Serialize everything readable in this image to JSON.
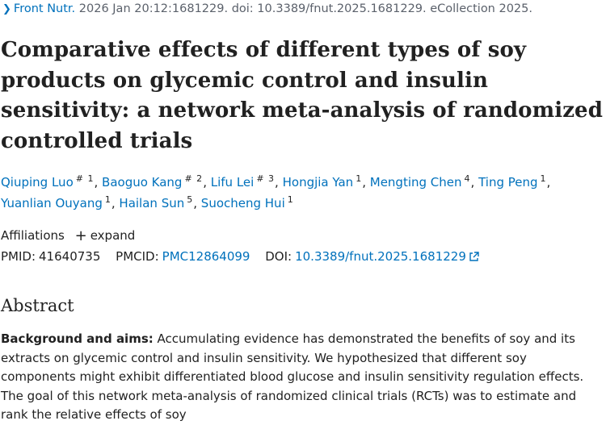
{
  "citation": {
    "journal": "Front Nutr.",
    "details": "2026 Jan 20:12:1681229. doi: 10.3389/fnut.2025.1681229. eCollection 2025."
  },
  "title": "Comparative effects of different types of soy products on glycemic control and insulin sensitivity: a network meta-analysis of randomized controlled trials",
  "authors": [
    {
      "name": "Qiuping Luo",
      "sup": "# 1"
    },
    {
      "name": "Baoguo Kang",
      "sup": "# 2"
    },
    {
      "name": "Lifu Lei",
      "sup": "# 3"
    },
    {
      "name": "Hongjia Yan",
      "sup": "1"
    },
    {
      "name": "Mengting Chen",
      "sup": "4"
    },
    {
      "name": "Ting Peng",
      "sup": "1"
    },
    {
      "name": "Yuanlian Ouyang",
      "sup": "1"
    },
    {
      "name": "Hailan Sun",
      "sup": "5"
    },
    {
      "name": "Suocheng Hui",
      "sup": "1"
    }
  ],
  "affiliations": {
    "label": "Affiliations",
    "expand_label": "expand"
  },
  "ids": {
    "pmid_label": "PMID:",
    "pmid": "41640735",
    "pmcid_label": "PMCID:",
    "pmcid": "PMC12864099",
    "doi_label": "DOI:",
    "doi": "10.3389/fnut.2025.1681229"
  },
  "abstract": {
    "heading": "Abstract",
    "section_label": "Background and aims:",
    "text": "Accumulating evidence has demonstrated the benefits of soy and its extracts on glycemic control and insulin sensitivity. We hypothesized that different soy components might exhibit differentiated blood glucose and insulin sensitivity regulation effects. The goal of this network meta-analysis of randomized clinical trials (RCTs) was to estimate and rank the relative effects of soy"
  },
  "icons": {
    "back": "chevron-right-icon",
    "external": "external-link-icon"
  }
}
